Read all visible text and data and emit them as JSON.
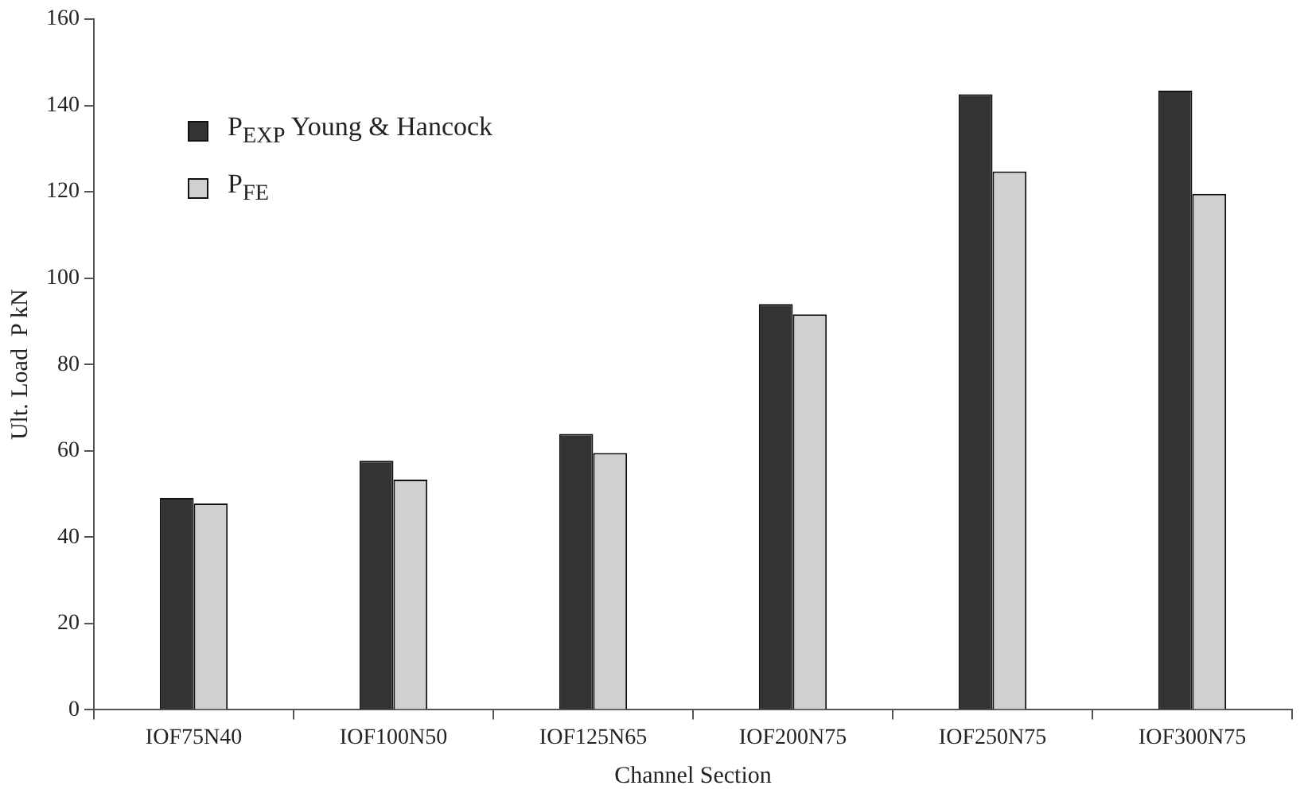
{
  "chart_data": {
    "type": "bar",
    "xlabel": "Channel Section",
    "ylabel": "Ult. Load  P kN",
    "categories": [
      "IOF75N40",
      "IOF100N50",
      "IOF125N65",
      "IOF200N75",
      "IOF250N75",
      "IOF300N75"
    ],
    "series": [
      {
        "name": "P$_{EXP}$ Young &  Hancock",
        "color": "#333333",
        "values": [
          49.1,
          57.7,
          63.9,
          94.0,
          142.6,
          143.4
        ]
      },
      {
        "name": "P$_{FE}$",
        "color": "#d0d0d0",
        "values": [
          47.8,
          53.3,
          59.5,
          91.6,
          124.7,
          119.5
        ]
      }
    ],
    "ylim": [
      0,
      160
    ],
    "yticks": [
      0,
      20,
      40,
      60,
      80,
      100,
      120,
      140,
      160
    ],
    "grid": false,
    "legend": "top left"
  }
}
